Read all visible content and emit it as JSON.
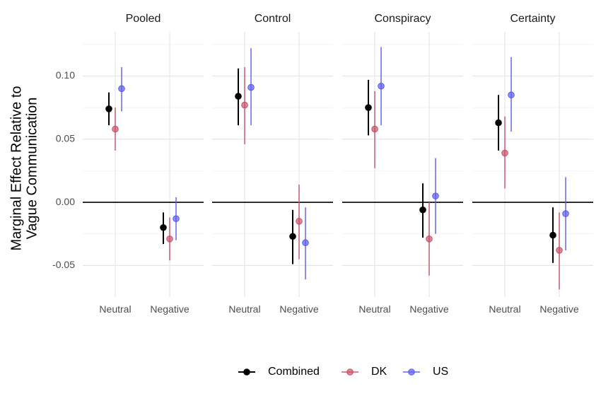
{
  "chart_data": {
    "type": "pointrange",
    "ylabel_lines": [
      "Marginal Effect Relative to",
      "Vague Communication"
    ],
    "ylim": [
      -0.075,
      0.135
    ],
    "yticks": [
      -0.05,
      0.0,
      0.05,
      0.1
    ],
    "ytick_labels": [
      "-0.05",
      "0.00",
      "0.05",
      "0.10"
    ],
    "categories": [
      "Neutral",
      "Negative"
    ],
    "panels": [
      {
        "name": "Pooled",
        "series": [
          {
            "name": "Combined",
            "color": "#000000",
            "points": [
              {
                "category": "Neutral",
                "estimate": 0.074,
                "lower": 0.061,
                "upper": 0.087
              },
              {
                "category": "Negative",
                "estimate": -0.02,
                "lower": -0.033,
                "upper": -0.008
              }
            ]
          },
          {
            "name": "DK",
            "color": "#c9526a",
            "points": [
              {
                "category": "Neutral",
                "estimate": 0.058,
                "lower": 0.041,
                "upper": 0.075
              },
              {
                "category": "Negative",
                "estimate": -0.029,
                "lower": -0.046,
                "upper": -0.012
              }
            ]
          },
          {
            "name": "US",
            "color": "#5b5bf0",
            "points": [
              {
                "category": "Neutral",
                "estimate": 0.09,
                "lower": 0.072,
                "upper": 0.107
              },
              {
                "category": "Negative",
                "estimate": -0.013,
                "lower": -0.03,
                "upper": 0.004
              }
            ]
          }
        ]
      },
      {
        "name": "Control",
        "series": [
          {
            "name": "Combined",
            "color": "#000000",
            "points": [
              {
                "category": "Neutral",
                "estimate": 0.084,
                "lower": 0.061,
                "upper": 0.106
              },
              {
                "category": "Negative",
                "estimate": -0.027,
                "lower": -0.049,
                "upper": -0.006
              }
            ]
          },
          {
            "name": "DK",
            "color": "#c9526a",
            "points": [
              {
                "category": "Neutral",
                "estimate": 0.077,
                "lower": 0.046,
                "upper": 0.107
              },
              {
                "category": "Negative",
                "estimate": -0.015,
                "lower": -0.045,
                "upper": 0.014
              }
            ]
          },
          {
            "name": "US",
            "color": "#5b5bf0",
            "points": [
              {
                "category": "Neutral",
                "estimate": 0.091,
                "lower": 0.061,
                "upper": 0.122
              },
              {
                "category": "Negative",
                "estimate": -0.032,
                "lower": -0.061,
                "upper": -0.004
              }
            ]
          }
        ]
      },
      {
        "name": "Conspiracy",
        "series": [
          {
            "name": "Combined",
            "color": "#000000",
            "points": [
              {
                "category": "Neutral",
                "estimate": 0.075,
                "lower": 0.053,
                "upper": 0.097
              },
              {
                "category": "Negative",
                "estimate": -0.006,
                "lower": -0.028,
                "upper": 0.015
              }
            ]
          },
          {
            "name": "DK",
            "color": "#c9526a",
            "points": [
              {
                "category": "Neutral",
                "estimate": 0.058,
                "lower": 0.027,
                "upper": 0.088
              },
              {
                "category": "Negative",
                "estimate": -0.029,
                "lower": -0.058,
                "upper": 0.0
              }
            ]
          },
          {
            "name": "US",
            "color": "#5b5bf0",
            "points": [
              {
                "category": "Neutral",
                "estimate": 0.092,
                "lower": 0.061,
                "upper": 0.123
              },
              {
                "category": "Negative",
                "estimate": 0.005,
                "lower": -0.025,
                "upper": 0.035
              }
            ]
          }
        ]
      },
      {
        "name": "Certainty",
        "series": [
          {
            "name": "Combined",
            "color": "#000000",
            "points": [
              {
                "category": "Neutral",
                "estimate": 0.063,
                "lower": 0.041,
                "upper": 0.085
              },
              {
                "category": "Negative",
                "estimate": -0.026,
                "lower": -0.048,
                "upper": -0.004
              }
            ]
          },
          {
            "name": "DK",
            "color": "#c9526a",
            "points": [
              {
                "category": "Neutral",
                "estimate": 0.039,
                "lower": 0.011,
                "upper": 0.068
              },
              {
                "category": "Negative",
                "estimate": -0.038,
                "lower": -0.069,
                "upper": -0.008
              }
            ]
          },
          {
            "name": "US",
            "color": "#5b5bf0",
            "points": [
              {
                "category": "Neutral",
                "estimate": 0.085,
                "lower": 0.056,
                "upper": 0.115
              },
              {
                "category": "Negative",
                "estimate": -0.009,
                "lower": -0.038,
                "upper": 0.02
              }
            ]
          }
        ]
      }
    ],
    "reference_line": 0.0,
    "legend": {
      "position": "bottom",
      "entries": [
        "Combined",
        "DK",
        "US"
      ]
    },
    "grid": true
  }
}
